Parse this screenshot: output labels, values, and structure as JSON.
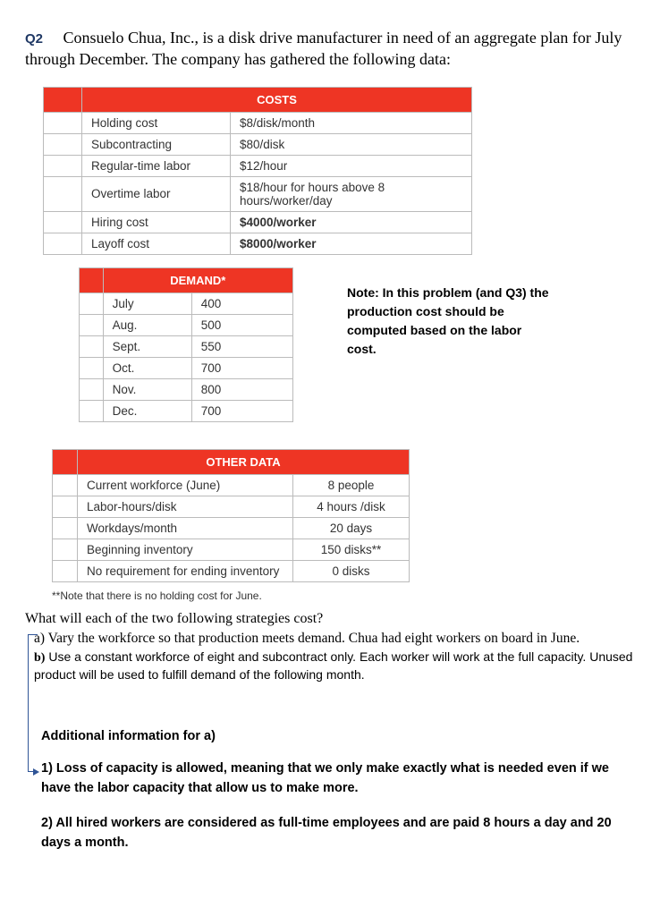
{
  "header": {
    "q_label": "Q2",
    "intro": "Consuelo Chua, Inc., is a disk drive manufacturer in need of an aggregate plan for July through December. The company has gathered the following data:"
  },
  "costs": {
    "title": "COSTS",
    "header_bg": "#ee3524",
    "rows": [
      {
        "label": "Holding cost",
        "value": "$8/disk/month"
      },
      {
        "label": "Subcontracting",
        "value": "$80/disk"
      },
      {
        "label": "Regular-time labor",
        "value": "$12/hour"
      },
      {
        "label": "Overtime labor",
        "value": "$18/hour for hours above 8 hours/worker/day"
      },
      {
        "label": "Hiring cost",
        "value": "$4000/worker"
      },
      {
        "label": "Layoff cost",
        "value": "$8000/worker"
      }
    ]
  },
  "demand": {
    "title": "DEMAND*",
    "rows": [
      {
        "month": "July",
        "value": "400"
      },
      {
        "month": "Aug.",
        "value": "500"
      },
      {
        "month": "Sept.",
        "value": "550"
      },
      {
        "month": "Oct.",
        "value": "700"
      },
      {
        "month": "Nov.",
        "value": "800"
      },
      {
        "month": "Dec.",
        "value": "700"
      }
    ]
  },
  "note": "Note: In this problem (and Q3) the production cost should be computed based on the labor cost.",
  "other": {
    "title": "OTHER DATA",
    "rows": [
      {
        "label": "Current workforce (June)",
        "value": "8 people"
      },
      {
        "label": "Labor-hours/disk",
        "value": "4 hours /disk"
      },
      {
        "label": "Workdays/month",
        "value": "20 days"
      },
      {
        "label": "Beginning inventory",
        "value": "150 disks**"
      },
      {
        "label": "No requirement for ending inventory",
        "value": "0 disks"
      }
    ],
    "footnote": "**Note that there is no holding cost for June."
  },
  "questions": {
    "lead": "What will each of the two following strategies cost?",
    "a": "a) Vary the workforce so that production meets demand. Chua had eight workers on board in June.",
    "b_label": "b)",
    "b": "Use a constant workforce of eight and subcontract only. Each worker will work at the full capacity. Unused product will be used to fulfill demand of the following month."
  },
  "additional": {
    "heading": "Additional information for a)",
    "p1": "1) Loss of capacity is allowed, meaning that we only make exactly what is needed even if we have the labor capacity that allow us to make more.",
    "p2": "2) All hired workers are considered as full-time employees and are paid 8 hours a day and 20 days a month."
  },
  "colors": {
    "q_label": "#1f3864",
    "table_header_bg": "#ee3524",
    "table_header_text": "#ffffff",
    "border": "#bbbbbb",
    "arrow": "#2f5496"
  }
}
